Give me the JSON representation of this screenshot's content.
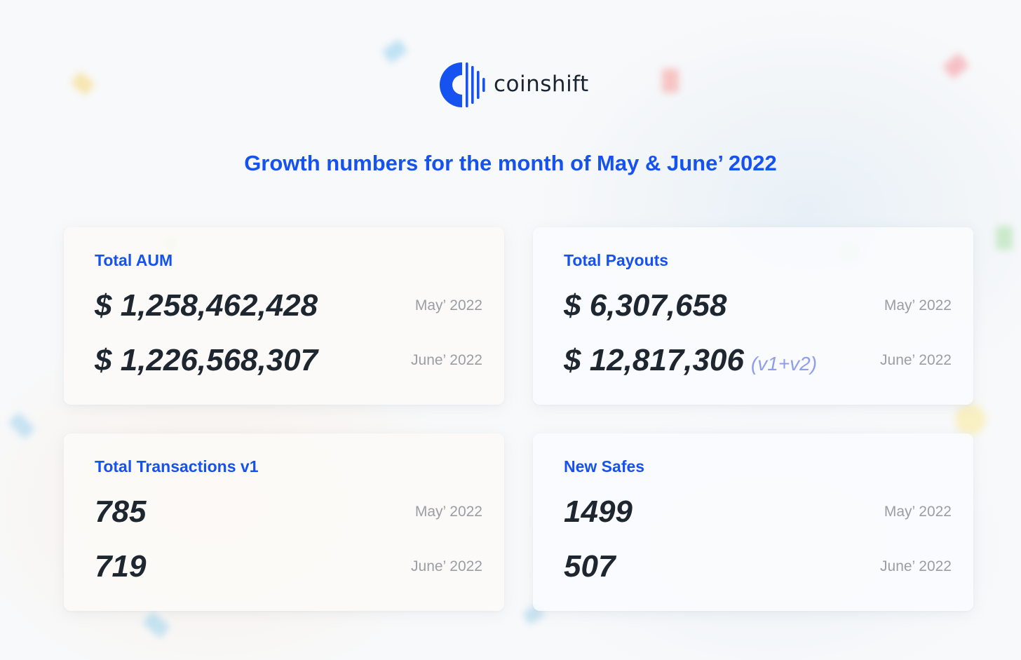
{
  "brand": {
    "name": "coinshift",
    "color": "#1652f0"
  },
  "headline": "Growth numbers for the month of May & June’ 2022",
  "cards": [
    {
      "title": "Total AUM",
      "rows": [
        {
          "value": "$ 1,258,462,428",
          "suffix": "",
          "period": "May’ 2022"
        },
        {
          "value": "$ 1,226,568,307",
          "suffix": "",
          "period": "June’ 2022"
        }
      ]
    },
    {
      "title": "Total Payouts",
      "rows": [
        {
          "value": "$ 6,307,658",
          "suffix": "",
          "period": "May’ 2022"
        },
        {
          "value": "$ 12,817,306",
          "suffix": "(v1+v2)",
          "period": "June’ 2022"
        }
      ]
    },
    {
      "title": "Total Transactions v1",
      "rows": [
        {
          "value": "785",
          "suffix": "",
          "period": "May’ 2022"
        },
        {
          "value": "719",
          "suffix": "",
          "period": "June’ 2022"
        }
      ]
    },
    {
      "title": "New Safes",
      "rows": [
        {
          "value": "1499",
          "suffix": "",
          "period": "May’ 2022"
        },
        {
          "value": "507",
          "suffix": "",
          "period": "June’ 2022"
        }
      ]
    }
  ],
  "colors": {
    "accent": "#1652f0",
    "value_text": "#1e2630",
    "period_text": "#9a9ea4",
    "suffix_text": "#8e9df0"
  }
}
